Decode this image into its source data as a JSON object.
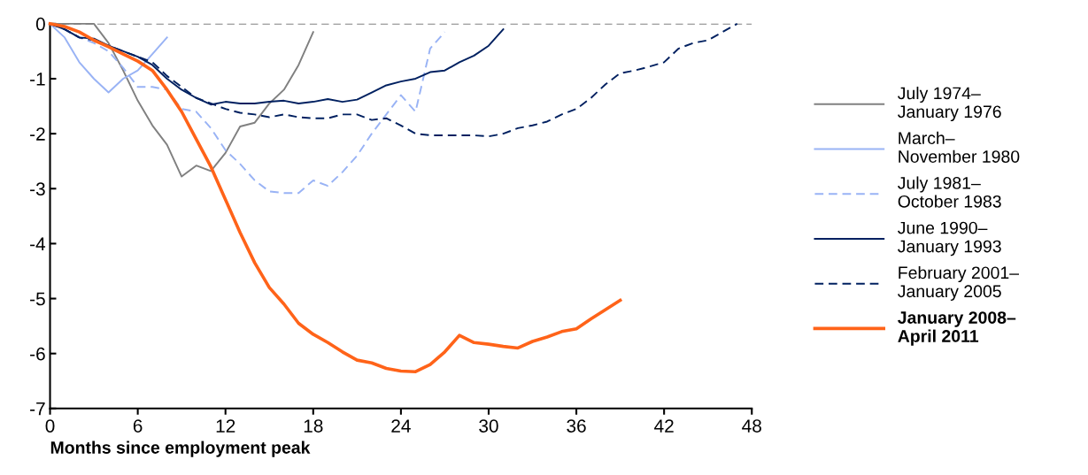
{
  "chart_data": {
    "type": "line",
    "xlabel": "Months since employment peak",
    "xlim": [
      0,
      48
    ],
    "xticks": [
      0,
      6,
      12,
      18,
      24,
      30,
      36,
      42,
      48
    ],
    "ylim": [
      -7,
      0
    ],
    "yticks": [
      -7,
      -6,
      -5,
      -4,
      -3,
      -2,
      -1,
      0
    ],
    "grid": false,
    "legend": "right",
    "marker": "none",
    "ref_lines": [
      {
        "axis": "y",
        "value": 0,
        "label": null,
        "color": "#808080",
        "line_style": "dashed"
      }
    ],
    "series": [
      {
        "name": "July 1974–\nJanuary 1976",
        "color": "#808080",
        "line_style": "solid",
        "x": [
          0,
          1,
          2,
          3,
          4,
          5,
          6,
          7,
          8,
          9,
          10,
          11,
          12,
          13,
          14,
          15,
          16,
          17,
          18
        ],
        "values": [
          0,
          0,
          0,
          0,
          -0.35,
          -0.85,
          -1.4,
          -1.85,
          -2.2,
          -2.78,
          -2.58,
          -2.68,
          -2.35,
          -1.87,
          -1.8,
          -1.45,
          -1.2,
          -0.75,
          -0.15
        ]
      },
      {
        "name": "March–\nNovember 1980",
        "color": "#99b3f5",
        "line_style": "solid",
        "x": [
          0,
          1,
          2,
          3,
          4,
          5,
          6,
          7,
          8
        ],
        "values": [
          0,
          -0.25,
          -0.7,
          -1.0,
          -1.25,
          -1.0,
          -0.85,
          -0.55,
          -0.25
        ]
      },
      {
        "name": "July 1981–\nOctober 1983",
        "color": "#99b3f5",
        "line_style": "dashed",
        "x": [
          0,
          1,
          2,
          3,
          4,
          5,
          6,
          7,
          8,
          9,
          10,
          11,
          12,
          13,
          14,
          15,
          16,
          17,
          18,
          19,
          20,
          21,
          22,
          23,
          24,
          25,
          26,
          27
        ],
        "values": [
          0,
          -0.1,
          -0.25,
          -0.35,
          -0.5,
          -0.8,
          -1.15,
          -1.15,
          -1.2,
          -1.55,
          -1.6,
          -1.9,
          -2.3,
          -2.55,
          -2.85,
          -3.05,
          -3.08,
          -3.08,
          -2.85,
          -2.95,
          -2.7,
          -2.4,
          -2.0,
          -1.65,
          -1.3,
          -1.6,
          -0.45,
          -0.15
        ]
      },
      {
        "name": "June 1990–\nJanuary 1993",
        "color": "#002060",
        "line_style": "solid",
        "x": [
          0,
          1,
          2,
          3,
          4,
          5,
          6,
          7,
          8,
          9,
          10,
          11,
          12,
          13,
          14,
          15,
          16,
          17,
          18,
          19,
          20,
          21,
          22,
          23,
          24,
          25,
          26,
          27,
          28,
          29,
          30,
          31
        ],
        "values": [
          0,
          -0.1,
          -0.25,
          -0.27,
          -0.4,
          -0.5,
          -0.6,
          -0.75,
          -1.0,
          -1.2,
          -1.35,
          -1.47,
          -1.42,
          -1.45,
          -1.45,
          -1.42,
          -1.4,
          -1.45,
          -1.42,
          -1.37,
          -1.42,
          -1.38,
          -1.25,
          -1.12,
          -1.05,
          -1.0,
          -0.88,
          -0.85,
          -0.7,
          -0.58,
          -0.4,
          -0.1
        ]
      },
      {
        "name": "February 2001–\nJanuary 2005",
        "color": "#002060",
        "line_style": "dashed",
        "x": [
          0,
          1,
          2,
          3,
          4,
          5,
          6,
          7,
          8,
          9,
          10,
          11,
          12,
          13,
          14,
          15,
          16,
          17,
          18,
          19,
          20,
          21,
          22,
          23,
          24,
          25,
          26,
          27,
          28,
          29,
          30,
          31,
          32,
          33,
          34,
          35,
          36,
          37,
          38,
          39,
          40,
          41,
          42,
          43,
          44,
          45,
          46,
          47
        ],
        "values": [
          0,
          -0.1,
          -0.25,
          -0.3,
          -0.4,
          -0.5,
          -0.6,
          -0.7,
          -0.95,
          -1.15,
          -1.35,
          -1.45,
          -1.55,
          -1.62,
          -1.65,
          -1.7,
          -1.65,
          -1.7,
          -1.72,
          -1.72,
          -1.65,
          -1.65,
          -1.75,
          -1.72,
          -1.85,
          -2.0,
          -2.03,
          -2.03,
          -2.03,
          -2.03,
          -2.05,
          -2.0,
          -1.9,
          -1.85,
          -1.78,
          -1.65,
          -1.55,
          -1.35,
          -1.1,
          -0.9,
          -0.85,
          -0.78,
          -0.7,
          -0.45,
          -0.35,
          -0.3,
          -0.15,
          0
        ]
      },
      {
        "name": "January 2008–\nApril 2011",
        "color": "#ff6319",
        "line_style": "solid",
        "x": [
          0,
          1,
          2,
          3,
          4,
          5,
          6,
          7,
          8,
          9,
          10,
          11,
          12,
          13,
          14,
          15,
          16,
          17,
          18,
          19,
          20,
          21,
          22,
          23,
          24,
          25,
          26,
          27,
          28,
          29,
          30,
          31,
          32,
          33,
          34,
          35,
          36,
          37,
          38,
          39
        ],
        "values": [
          0,
          -0.05,
          -0.15,
          -0.3,
          -0.42,
          -0.55,
          -0.68,
          -0.85,
          -1.2,
          -1.6,
          -2.1,
          -2.6,
          -3.2,
          -3.8,
          -4.35,
          -4.8,
          -5.1,
          -5.45,
          -5.65,
          -5.8,
          -5.97,
          -6.12,
          -6.17,
          -6.27,
          -6.32,
          -6.33,
          -6.2,
          -5.97,
          -5.67,
          -5.8,
          -5.83,
          -5.87,
          -5.9,
          -5.78,
          -5.7,
          -5.6,
          -5.55,
          -5.37,
          -5.2,
          -5.03
        ]
      }
    ]
  }
}
